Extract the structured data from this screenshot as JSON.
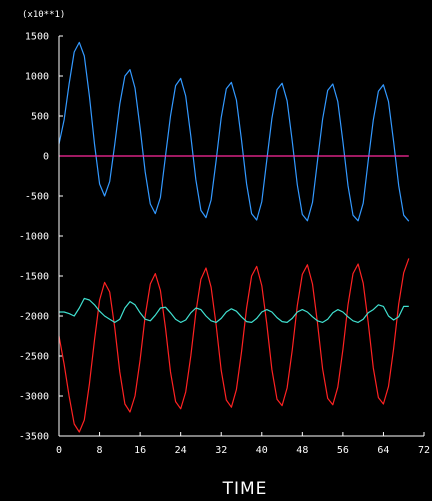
{
  "chart_data": {
    "type": "line",
    "title": "",
    "xlabel": "TIME",
    "ylabel": "",
    "scale_note": "(x10**1)",
    "xlim": [
      0,
      72
    ],
    "ylim": [
      -3500,
      1500
    ],
    "x_ticks": [
      {
        "value": 0,
        "label": "0"
      },
      {
        "value": 8,
        "label": "8"
      },
      {
        "value": 16,
        "label": "16"
      },
      {
        "value": 24,
        "label": "24"
      },
      {
        "value": 32,
        "label": "32"
      },
      {
        "value": 40,
        "label": "40"
      },
      {
        "value": 48,
        "label": "48"
      },
      {
        "value": 56,
        "label": "56"
      },
      {
        "value": 64,
        "label": "64"
      },
      {
        "value": 72,
        "label": "72"
      }
    ],
    "y_ticks": [
      {
        "value": 1500,
        "label": "1500"
      },
      {
        "value": 1000,
        "label": "1000"
      },
      {
        "value": 500,
        "label": "500"
      },
      {
        "value": 0,
        "label": "0"
      },
      {
        "value": -500,
        "label": "-500"
      },
      {
        "value": -1000,
        "label": "-1000"
      },
      {
        "value": -1500,
        "label": "-1500"
      },
      {
        "value": -2000,
        "label": "-2000"
      },
      {
        "value": -2500,
        "label": "-2500"
      },
      {
        "value": -3000,
        "label": "-3000"
      },
      {
        "value": -3500,
        "label": "-3500"
      }
    ],
    "grid": false,
    "legend": "none",
    "colors": {
      "background": "#000000",
      "axes": "#ffffff"
    },
    "series": [
      {
        "color": "#3399ff",
        "points": [
          [
            0,
            150
          ],
          [
            1,
            450
          ],
          [
            2,
            900
          ],
          [
            3,
            1300
          ],
          [
            4,
            1420
          ],
          [
            5,
            1250
          ],
          [
            6,
            750
          ],
          [
            7,
            150
          ],
          [
            8,
            -350
          ],
          [
            9,
            -500
          ],
          [
            10,
            -320
          ],
          [
            11,
            150
          ],
          [
            12,
            650
          ],
          [
            13,
            1000
          ],
          [
            14,
            1080
          ],
          [
            15,
            850
          ],
          [
            16,
            350
          ],
          [
            17,
            -200
          ],
          [
            18,
            -600
          ],
          [
            19,
            -720
          ],
          [
            20,
            -520
          ],
          [
            21,
            0
          ],
          [
            22,
            500
          ],
          [
            23,
            880
          ],
          [
            24,
            970
          ],
          [
            25,
            750
          ],
          [
            26,
            250
          ],
          [
            27,
            -300
          ],
          [
            28,
            -680
          ],
          [
            29,
            -770
          ],
          [
            30,
            -550
          ],
          [
            31,
            -50
          ],
          [
            32,
            480
          ],
          [
            33,
            840
          ],
          [
            34,
            920
          ],
          [
            35,
            700
          ],
          [
            36,
            200
          ],
          [
            37,
            -350
          ],
          [
            38,
            -720
          ],
          [
            39,
            -800
          ],
          [
            40,
            -570
          ],
          [
            41,
            -50
          ],
          [
            42,
            470
          ],
          [
            43,
            830
          ],
          [
            44,
            910
          ],
          [
            45,
            690
          ],
          [
            46,
            190
          ],
          [
            47,
            -360
          ],
          [
            48,
            -730
          ],
          [
            49,
            -810
          ],
          [
            50,
            -580
          ],
          [
            51,
            -60
          ],
          [
            52,
            460
          ],
          [
            53,
            820
          ],
          [
            54,
            900
          ],
          [
            55,
            680
          ],
          [
            56,
            180
          ],
          [
            57,
            -370
          ],
          [
            58,
            -740
          ],
          [
            59,
            -810
          ],
          [
            60,
            -590
          ],
          [
            61,
            -60
          ],
          [
            62,
            450
          ],
          [
            63,
            810
          ],
          [
            64,
            890
          ],
          [
            65,
            680
          ],
          [
            66,
            180
          ],
          [
            67,
            -370
          ],
          [
            68,
            -740
          ],
          [
            69,
            -815
          ]
        ]
      },
      {
        "color": "#ff2222",
        "points": [
          [
            0,
            -2250
          ],
          [
            1,
            -2600
          ],
          [
            2,
            -3000
          ],
          [
            3,
            -3350
          ],
          [
            4,
            -3450
          ],
          [
            5,
            -3300
          ],
          [
            6,
            -2850
          ],
          [
            7,
            -2300
          ],
          [
            8,
            -1800
          ],
          [
            9,
            -1580
          ],
          [
            10,
            -1700
          ],
          [
            11,
            -2150
          ],
          [
            12,
            -2700
          ],
          [
            13,
            -3100
          ],
          [
            14,
            -3200
          ],
          [
            15,
            -3000
          ],
          [
            16,
            -2550
          ],
          [
            17,
            -2000
          ],
          [
            18,
            -1600
          ],
          [
            19,
            -1470
          ],
          [
            20,
            -1680
          ],
          [
            21,
            -2150
          ],
          [
            22,
            -2700
          ],
          [
            23,
            -3070
          ],
          [
            24,
            -3160
          ],
          [
            25,
            -2950
          ],
          [
            26,
            -2500
          ],
          [
            27,
            -1950
          ],
          [
            28,
            -1540
          ],
          [
            29,
            -1400
          ],
          [
            30,
            -1640
          ],
          [
            31,
            -2120
          ],
          [
            32,
            -2680
          ],
          [
            33,
            -3050
          ],
          [
            34,
            -3140
          ],
          [
            35,
            -2920
          ],
          [
            36,
            -2450
          ],
          [
            37,
            -1900
          ],
          [
            38,
            -1500
          ],
          [
            39,
            -1380
          ],
          [
            40,
            -1620
          ],
          [
            41,
            -2100
          ],
          [
            42,
            -2670
          ],
          [
            43,
            -3040
          ],
          [
            44,
            -3120
          ],
          [
            45,
            -2900
          ],
          [
            46,
            -2430
          ],
          [
            47,
            -1870
          ],
          [
            48,
            -1480
          ],
          [
            49,
            -1360
          ],
          [
            50,
            -1600
          ],
          [
            51,
            -2090
          ],
          [
            52,
            -2660
          ],
          [
            53,
            -3030
          ],
          [
            54,
            -3110
          ],
          [
            55,
            -2890
          ],
          [
            56,
            -2420
          ],
          [
            57,
            -1860
          ],
          [
            58,
            -1470
          ],
          [
            59,
            -1350
          ],
          [
            60,
            -1590
          ],
          [
            61,
            -2080
          ],
          [
            62,
            -2650
          ],
          [
            63,
            -3020
          ],
          [
            64,
            -3100
          ],
          [
            65,
            -2880
          ],
          [
            66,
            -2410
          ],
          [
            67,
            -1850
          ],
          [
            68,
            -1460
          ],
          [
            69,
            -1280
          ]
        ]
      },
      {
        "color": "#40e0d0",
        "points": [
          [
            0,
            -1950
          ],
          [
            1,
            -1950
          ],
          [
            2,
            -1970
          ],
          [
            3,
            -2000
          ],
          [
            4,
            -1900
          ],
          [
            5,
            -1780
          ],
          [
            6,
            -1800
          ],
          [
            7,
            -1860
          ],
          [
            8,
            -1940
          ],
          [
            9,
            -2000
          ],
          [
            10,
            -2040
          ],
          [
            11,
            -2080
          ],
          [
            12,
            -2040
          ],
          [
            13,
            -1900
          ],
          [
            14,
            -1820
          ],
          [
            15,
            -1860
          ],
          [
            16,
            -1960
          ],
          [
            17,
            -2040
          ],
          [
            18,
            -2060
          ],
          [
            19,
            -1990
          ],
          [
            20,
            -1900
          ],
          [
            21,
            -1890
          ],
          [
            22,
            -1960
          ],
          [
            23,
            -2040
          ],
          [
            24,
            -2080
          ],
          [
            25,
            -2050
          ],
          [
            26,
            -1960
          ],
          [
            27,
            -1900
          ],
          [
            28,
            -1920
          ],
          [
            29,
            -2000
          ],
          [
            30,
            -2060
          ],
          [
            31,
            -2080
          ],
          [
            32,
            -2030
          ],
          [
            33,
            -1950
          ],
          [
            34,
            -1910
          ],
          [
            35,
            -1940
          ],
          [
            36,
            -2010
          ],
          [
            37,
            -2070
          ],
          [
            38,
            -2080
          ],
          [
            39,
            -2030
          ],
          [
            40,
            -1950
          ],
          [
            41,
            -1920
          ],
          [
            42,
            -1950
          ],
          [
            43,
            -2020
          ],
          [
            44,
            -2070
          ],
          [
            45,
            -2080
          ],
          [
            46,
            -2030
          ],
          [
            47,
            -1950
          ],
          [
            48,
            -1920
          ],
          [
            49,
            -1950
          ],
          [
            50,
            -2010
          ],
          [
            51,
            -2060
          ],
          [
            52,
            -2080
          ],
          [
            53,
            -2040
          ],
          [
            54,
            -1960
          ],
          [
            55,
            -1920
          ],
          [
            56,
            -1950
          ],
          [
            57,
            -2010
          ],
          [
            58,
            -2060
          ],
          [
            59,
            -2080
          ],
          [
            60,
            -2040
          ],
          [
            61,
            -1960
          ],
          [
            62,
            -1920
          ],
          [
            63,
            -1860
          ],
          [
            64,
            -1880
          ],
          [
            65,
            -2000
          ],
          [
            66,
            -2050
          ],
          [
            67,
            -2010
          ],
          [
            68,
            -1880
          ],
          [
            69,
            -1880
          ]
        ]
      },
      {
        "color": "#ff2a9d",
        "points": [
          [
            0,
            0
          ],
          [
            69,
            0
          ]
        ]
      }
    ]
  }
}
